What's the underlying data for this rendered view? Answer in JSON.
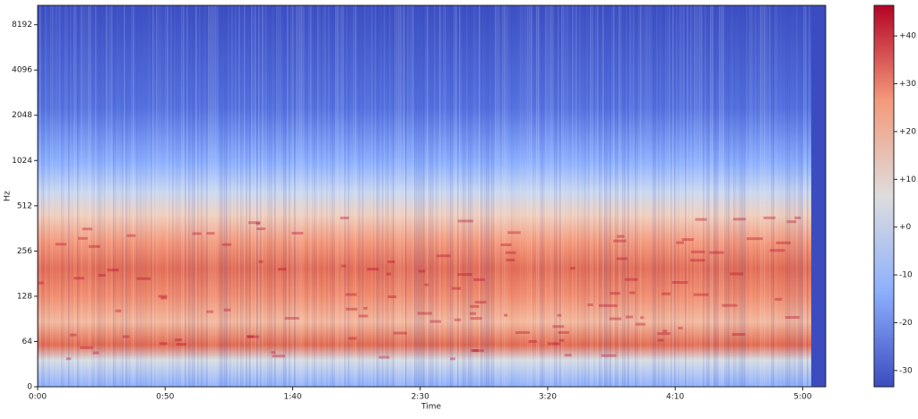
{
  "chart_data": {
    "type": "spectrogram",
    "xlabel": "Time",
    "ylabel": "Hz",
    "xlim": [
      0,
      309
    ],
    "ylim": [
      0,
      11025
    ],
    "yscale": "log",
    "xticks": [
      {
        "value": 0,
        "label": "0:00"
      },
      {
        "value": 50,
        "label": "0:50"
      },
      {
        "value": 100,
        "label": "1:40"
      },
      {
        "value": 150,
        "label": "2:30"
      },
      {
        "value": 200,
        "label": "3:20"
      },
      {
        "value": 250,
        "label": "4:10"
      },
      {
        "value": 300,
        "label": "5:00"
      }
    ],
    "yticks": [
      0,
      64,
      128,
      256,
      512,
      1024,
      2048,
      4096,
      8192
    ],
    "colorbar": {
      "clim": [
        -33.4,
        46.4
      ],
      "ticks": [
        {
          "value": 40,
          "label": "+40"
        },
        {
          "value": 30,
          "label": "+30"
        },
        {
          "value": 20,
          "label": "+20"
        },
        {
          "value": 10,
          "label": "+10"
        },
        {
          "value": 0,
          "label": "+0"
        },
        {
          "value": -10,
          "label": "-10"
        },
        {
          "value": -20,
          "label": "-20"
        },
        {
          "value": -30,
          "label": "-30"
        }
      ]
    }
  }
}
